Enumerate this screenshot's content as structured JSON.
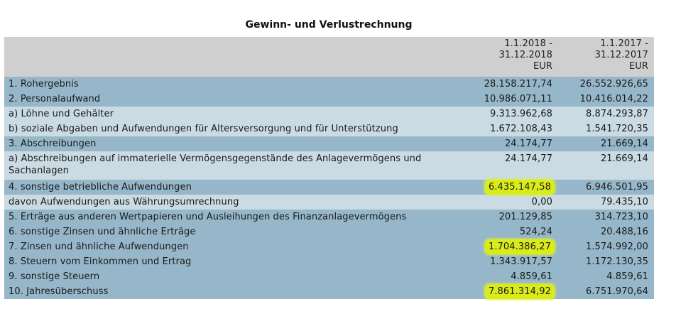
{
  "title": "Gewinn- und Verlustrechnung",
  "header": {
    "col1": [
      "1.1.2018 -",
      "31.12.2018",
      "EUR"
    ],
    "col2": [
      "1.1.2017 -",
      "31.12.2017",
      "EUR"
    ]
  },
  "rows": [
    {
      "label": "1. Rohergebnis",
      "v2018": "28.158.217,74",
      "v2017": "26.552.926,65"
    },
    {
      "label": "2. Personalaufwand",
      "v2018": "10.986.071,11",
      "v2017": "10.416.014,22"
    },
    {
      "label": "a) Löhne und Gehälter",
      "v2018": "9.313.962,68",
      "v2017": "8.874.293,87"
    },
    {
      "label": "b) soziale Abgaben und Aufwendungen für Altersversorgung und für Unterstützung",
      "v2018": "1.672.108,43",
      "v2017": "1.541.720,35"
    },
    {
      "label": "3. Abschreibungen",
      "v2018": "24.174,77",
      "v2017": "21.669,14"
    },
    {
      "label": "a) Abschreibungen auf immaterielle Vermögensgegenstände des Anlagevermögens und Sachanlagen",
      "v2018": "24.174,77",
      "v2017": "21.669,14"
    },
    {
      "label": "4. sonstige betriebliche Aufwendungen",
      "v2018": "6.435.147,58",
      "v2017": "6.946.501,95"
    },
    {
      "label": "davon Aufwendungen aus Währungsumrechnung",
      "v2018": "0,00",
      "v2017": "79.435,10"
    },
    {
      "label": "5. Erträge aus anderen Wertpapieren und Ausleihungen des Finanzanlagevermögens",
      "v2018": "201.129,85",
      "v2017": "314.723,10"
    },
    {
      "label": "6. sonstige Zinsen und ähnliche Erträge",
      "v2018": "524,24",
      "v2017": "20.488,16"
    },
    {
      "label": "7. Zinsen und ähnliche Aufwendungen",
      "v2018": "1.704.386,27",
      "v2017": "1.574.992,00"
    },
    {
      "label": "8. Steuern vom Einkommen und Ertrag",
      "v2018": "1.343.917,57",
      "v2017": "1.172.130,35"
    },
    {
      "label": "9. sonstige Steuern",
      "v2018": "4.859,61",
      "v2017": "4.859,61"
    },
    {
      "label": "10. Jahresüberschuss",
      "v2018": "7.861.314,92",
      "v2017": "6.751.970,64"
    }
  ],
  "colors": {
    "header_bg": "#cfcfcf",
    "row_dark": "#96b7c9",
    "row_light": "#cadbe4",
    "highlight": "#d9ec1a"
  }
}
